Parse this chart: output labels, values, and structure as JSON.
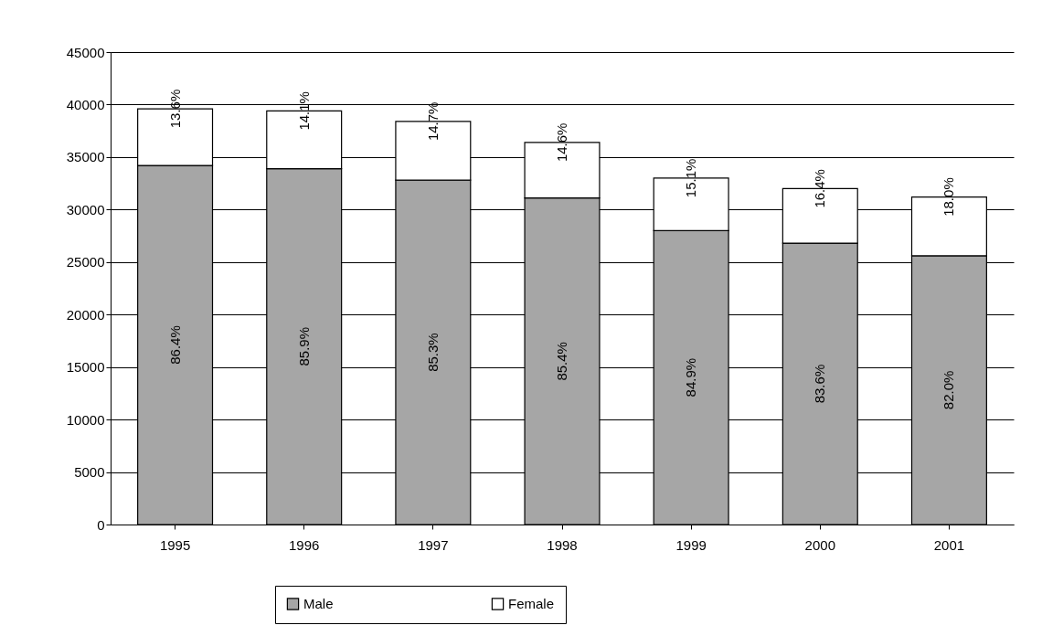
{
  "chart_data": {
    "type": "bar",
    "stacked": true,
    "categories": [
      "1995",
      "1996",
      "1997",
      "1998",
      "1999",
      "2000",
      "2001"
    ],
    "series": [
      {
        "name": "Male",
        "color": "#a6a6a6",
        "values": [
          34200,
          33900,
          32800,
          31100,
          28000,
          26800,
          25600
        ]
      },
      {
        "name": "Female",
        "color": "#ffffff",
        "values": [
          5400,
          5500,
          5600,
          5300,
          5000,
          5200,
          5600
        ]
      }
    ],
    "annotations": [
      "86.4%",
      "85.9%",
      "85.3%",
      "85.4%",
      "84.9%",
      "83.6%",
      "82.0%",
      "13.6%",
      "14.1%",
      "14.7%",
      "14.6%",
      "15.1%",
      "16.4%",
      "18.0%"
    ],
    "ylim": [
      0,
      45000
    ],
    "yticks": [
      0,
      5000,
      10000,
      15000,
      20000,
      25000,
      30000,
      35000,
      40000,
      45000
    ],
    "grid": "y",
    "legend": "bottom"
  }
}
